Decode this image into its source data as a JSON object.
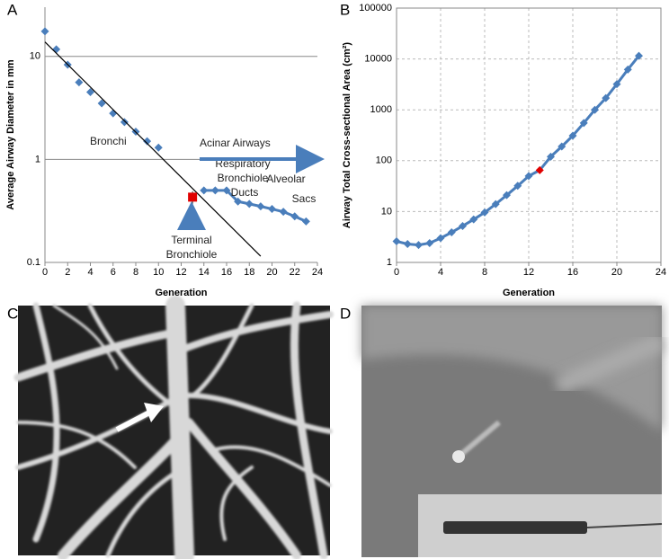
{
  "chart_data": [
    {
      "type": "scatter",
      "panel": "A",
      "x_label": "Generation",
      "y_label": "Average Airway Diameter in mm",
      "log_y": true,
      "grid": "y",
      "xlim": [
        0,
        24
      ],
      "xticks": [
        0,
        2,
        4,
        6,
        8,
        10,
        12,
        14,
        16,
        18,
        20,
        22,
        24
      ],
      "ylim": [
        0.1,
        30
      ],
      "yticks": [
        0.1,
        1,
        10
      ],
      "series": [
        {
          "color": "#4a7ebb",
          "marker": "diamond",
          "line": false,
          "x": [
            0,
            1,
            2,
            3,
            4,
            5,
            6,
            7,
            8,
            9,
            10
          ],
          "values": [
            17.5,
            11.7,
            8.3,
            5.6,
            4.5,
            3.5,
            2.8,
            2.3,
            1.86,
            1.5,
            1.3
          ]
        },
        {
          "color": "#4a7ebb",
          "marker": "diamond",
          "line": true,
          "x": [
            14,
            15,
            16,
            17,
            18,
            19,
            20,
            21,
            22,
            23
          ],
          "values": [
            0.5,
            0.5,
            0.5,
            0.39,
            0.37,
            0.35,
            0.33,
            0.31,
            0.28,
            0.25
          ]
        },
        {
          "color": "#000000",
          "marker": "none",
          "line": true,
          "x": [
            0,
            19
          ],
          "values": [
            13.8,
            0.115
          ]
        },
        {
          "color": "#e00000",
          "marker": "square",
          "line": false,
          "x": [
            13
          ],
          "values": [
            0.43
          ],
          "errors": [
            0.06
          ]
        }
      ],
      "annotations": [
        "Bronchi",
        "Acinar Airways",
        "Respiratory",
        "Bronchiole",
        "Alveolar",
        "Ducts",
        "Sacs",
        "Terminal",
        "Bronchiole"
      ]
    },
    {
      "type": "line",
      "panel": "B",
      "x_label": "Generation",
      "y_label": "Airway Total Cross-sectional Area (cm²)",
      "log_y": true,
      "grid": "both",
      "xlim": [
        0,
        24
      ],
      "xticks": [
        0,
        4,
        8,
        12,
        16,
        20,
        24
      ],
      "ylim": [
        1,
        100000
      ],
      "yticks": [
        1,
        10,
        100,
        1000,
        10000,
        100000
      ],
      "series": [
        {
          "color": "#4a7ebb",
          "marker": "diamond",
          "line": true,
          "x": [
            0,
            1,
            2,
            3,
            4,
            5,
            6,
            7,
            8,
            9,
            10,
            11,
            12,
            13,
            14,
            15,
            16,
            17,
            18,
            19,
            20,
            21,
            22
          ],
          "values": [
            2.6,
            2.3,
            2.2,
            2.4,
            3.0,
            3.9,
            5.2,
            7.0,
            9.6,
            14,
            21,
            32,
            50,
            65,
            120,
            190,
            310,
            550,
            1000,
            1700,
            3200,
            6200,
            11500
          ],
          "marker_colors": [
            "#4a7ebb",
            "#4a7ebb",
            "#4a7ebb",
            "#4a7ebb",
            "#4a7ebb",
            "#4a7ebb",
            "#4a7ebb",
            "#4a7ebb",
            "#4a7ebb",
            "#4a7ebb",
            "#4a7ebb",
            "#4a7ebb",
            "#4a7ebb",
            "#e00000",
            "#4a7ebb",
            "#4a7ebb",
            "#4a7ebb",
            "#4a7ebb",
            "#4a7ebb",
            "#4a7ebb",
            "#4a7ebb",
            "#4a7ebb",
            "#4a7ebb"
          ]
        }
      ]
    }
  ],
  "images": [
    {
      "panel": "C"
    },
    {
      "panel": "D"
    }
  ]
}
